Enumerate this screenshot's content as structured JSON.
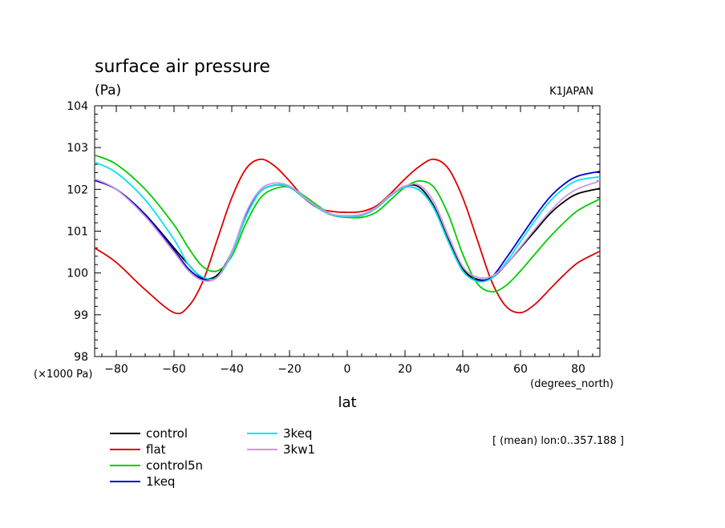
{
  "chart_data": {
    "type": "line",
    "title": "surface air pressure",
    "unit": "(Pa)",
    "model": "K1JAPAN",
    "xlabel": "lat",
    "x_unit": "(degrees_north)",
    "y_scale_label": "(×1000 Pa)",
    "note": "[ (mean) lon:0..357.188 ]",
    "xlim": [
      -87.5,
      87.5
    ],
    "ylim": [
      98,
      104
    ],
    "x_ticks": [
      -80,
      -60,
      -40,
      -20,
      0,
      20,
      40,
      60,
      80
    ],
    "y_ticks": [
      98,
      99,
      100,
      101,
      102,
      103,
      104
    ],
    "grid": false,
    "legend_placement": "bottom-left",
    "x": [
      -87.5,
      -80,
      -70,
      -60,
      -55,
      -50,
      -45,
      -40,
      -35,
      -30,
      -25,
      -20,
      -15,
      -10,
      -5,
      0,
      5,
      10,
      15,
      20,
      25,
      30,
      35,
      40,
      45,
      50,
      55,
      60,
      65,
      70,
      75,
      80,
      87.5
    ],
    "series": [
      {
        "name": "control",
        "color": "#000000",
        "values": [
          102.22,
          102.0,
          101.4,
          100.6,
          100.2,
          99.88,
          99.95,
          100.5,
          101.4,
          101.95,
          102.1,
          102.05,
          101.8,
          101.55,
          101.38,
          101.35,
          101.38,
          101.55,
          101.85,
          102.08,
          102.05,
          101.6,
          100.8,
          100.1,
          99.85,
          99.88,
          100.2,
          100.6,
          101.0,
          101.4,
          101.7,
          101.9,
          102.02
        ]
      },
      {
        "name": "flat",
        "color": "#dd0000",
        "values": [
          100.6,
          100.25,
          99.6,
          99.05,
          99.2,
          99.8,
          100.8,
          101.8,
          102.5,
          102.72,
          102.55,
          102.2,
          101.8,
          101.55,
          101.47,
          101.45,
          101.47,
          101.6,
          101.9,
          102.25,
          102.55,
          102.72,
          102.5,
          101.8,
          100.8,
          99.8,
          99.2,
          99.05,
          99.25,
          99.6,
          99.95,
          100.25,
          100.52
        ]
      },
      {
        "name": "control5n",
        "color": "#00cc00",
        "values": [
          102.82,
          102.6,
          102.0,
          101.15,
          100.6,
          100.15,
          100.05,
          100.4,
          101.2,
          101.8,
          102.02,
          102.05,
          101.85,
          101.6,
          101.38,
          101.33,
          101.33,
          101.45,
          101.75,
          102.05,
          102.2,
          102.05,
          101.4,
          100.45,
          99.75,
          99.55,
          99.7,
          100.05,
          100.45,
          100.85,
          101.2,
          101.5,
          101.77
        ]
      },
      {
        "name": "1keq",
        "color": "#0000cc",
        "values": [
          102.22,
          102.0,
          101.4,
          100.55,
          100.1,
          99.85,
          99.9,
          100.5,
          101.4,
          101.95,
          102.1,
          102.05,
          101.8,
          101.55,
          101.38,
          101.35,
          101.38,
          101.55,
          101.85,
          102.05,
          101.98,
          101.55,
          100.75,
          100.05,
          99.82,
          99.9,
          100.35,
          100.85,
          101.35,
          101.8,
          102.12,
          102.32,
          102.43
        ]
      },
      {
        "name": "3keq",
        "color": "#00e5ee",
        "values": [
          102.65,
          102.4,
          101.75,
          100.8,
          100.2,
          99.9,
          99.9,
          100.45,
          101.35,
          101.95,
          102.1,
          102.05,
          101.8,
          101.55,
          101.38,
          101.35,
          101.38,
          101.55,
          101.85,
          102.05,
          101.98,
          101.55,
          100.75,
          100.05,
          99.8,
          99.87,
          100.25,
          100.75,
          101.25,
          101.7,
          102.02,
          102.22,
          102.3
        ]
      },
      {
        "name": "3kw1",
        "color": "#cc99dd",
        "values": [
          102.25,
          102.0,
          101.35,
          100.5,
          100.05,
          99.82,
          99.9,
          100.5,
          101.45,
          102.0,
          102.15,
          102.08,
          101.82,
          101.57,
          101.4,
          101.37,
          101.4,
          101.57,
          101.87,
          102.08,
          102.1,
          101.7,
          100.9,
          100.15,
          99.9,
          99.92,
          100.2,
          100.62,
          101.05,
          101.45,
          101.8,
          102.02,
          102.2
        ]
      }
    ]
  }
}
